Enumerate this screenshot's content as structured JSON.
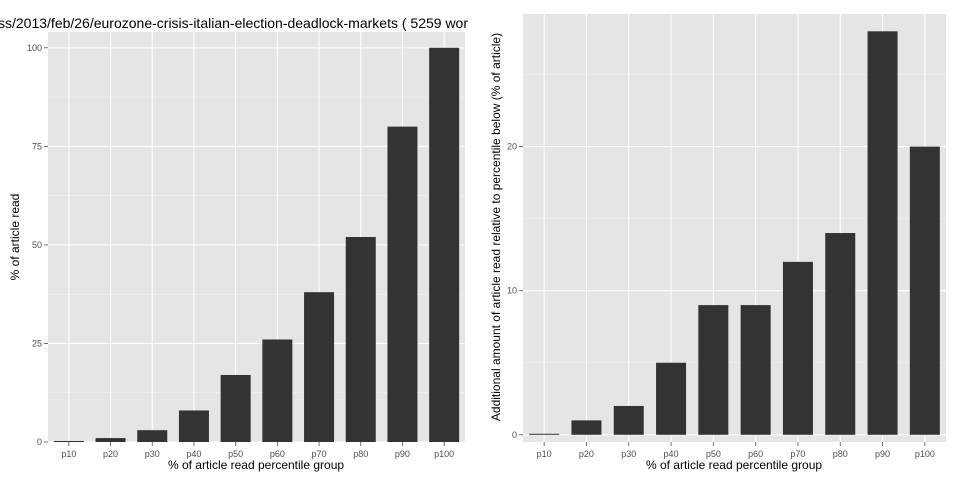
{
  "title": "ss/2013/feb/26/eurozone-crisis-italian-election-deadlock-markets ( 5259 wor",
  "chart_data": [
    {
      "type": "bar",
      "categories": [
        "p10",
        "p20",
        "p30",
        "p40",
        "p50",
        "p60",
        "p70",
        "p80",
        "p90",
        "p100"
      ],
      "values": [
        0,
        1,
        3,
        8,
        17,
        26,
        38,
        52,
        80,
        100
      ],
      "xlabel": "% of article read percentile group",
      "ylabel": "% of article read",
      "ylim": [
        0,
        104
      ],
      "yticks": [
        "0",
        "25",
        "50",
        "75",
        "100"
      ],
      "grid": true
    },
    {
      "type": "bar",
      "categories": [
        "p10",
        "p20",
        "p30",
        "p40",
        "p50",
        "p60",
        "p70",
        "p80",
        "p90",
        "p100"
      ],
      "values": [
        0,
        1,
        2,
        5,
        9,
        9,
        12,
        14,
        28,
        20
      ],
      "xlabel": "% of article read percentile group",
      "ylabel": "Additional amount of article read relative to percentile below (% of article)",
      "ylim": [
        -0.5,
        29.2
      ],
      "yticks": [
        "0",
        "10",
        "20"
      ],
      "grid": true
    }
  ]
}
